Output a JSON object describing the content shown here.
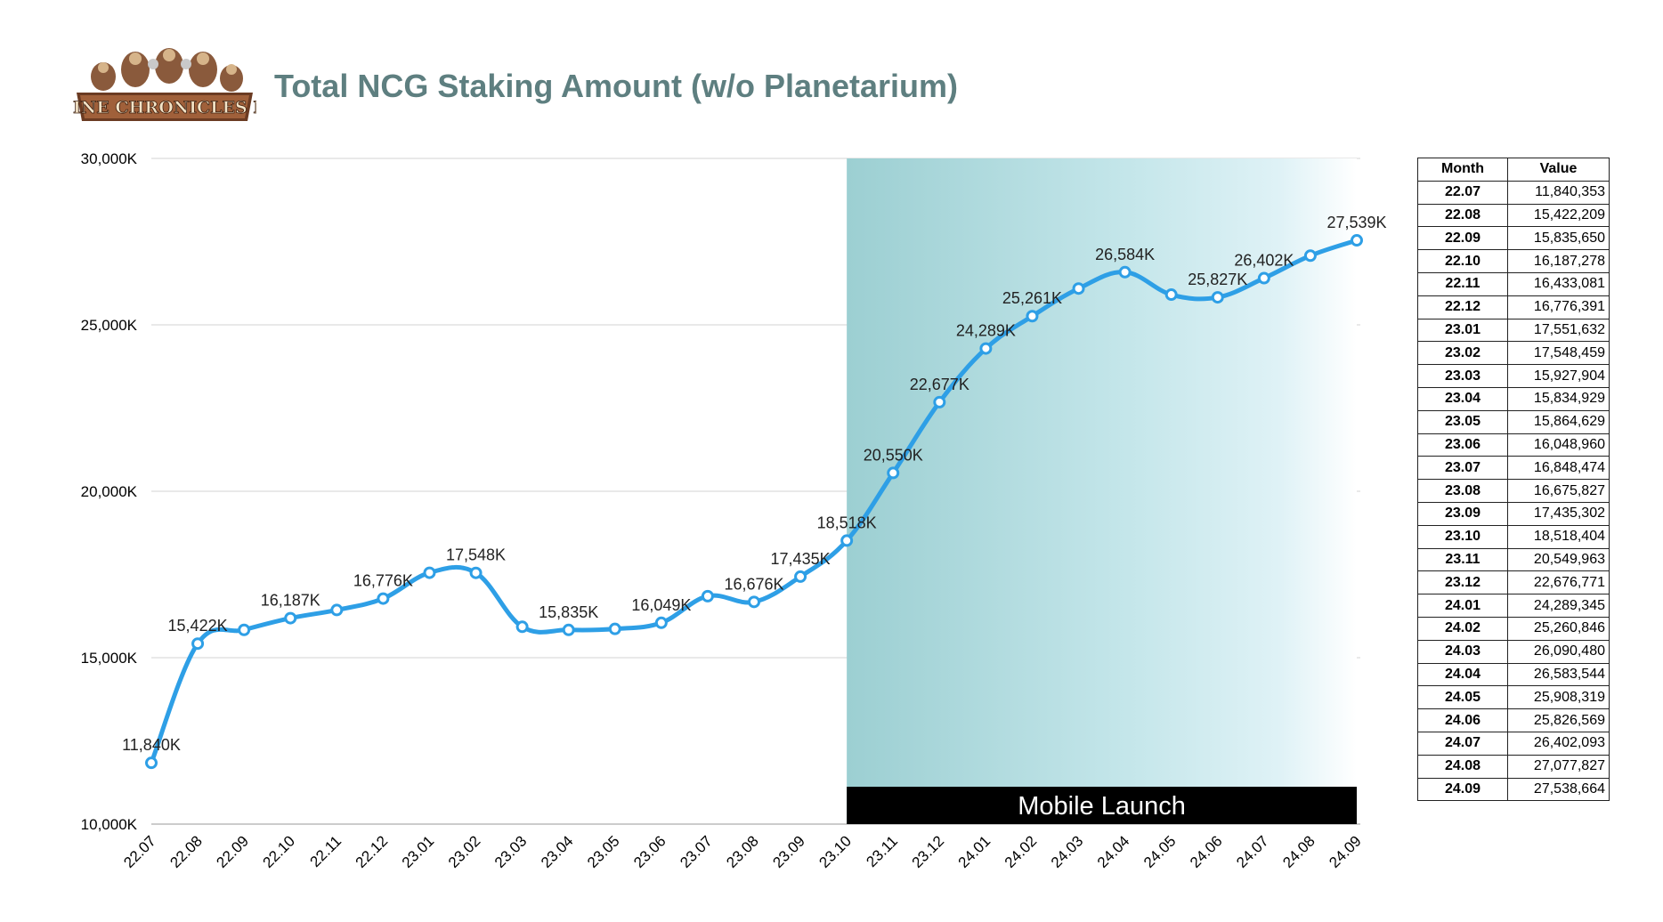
{
  "logo": {
    "text": "NINE CHRONICLES M",
    "icon": "nine-chronicles-m-logo"
  },
  "chart_data": {
    "type": "line",
    "title": "Total NCG Staking Amount (w/o Planetarium)",
    "xlabel": "",
    "ylabel": "",
    "ylim": [
      10000,
      30000
    ],
    "y_ticks": [
      "10,000K",
      "15,000K",
      "20,000K",
      "25,000K",
      "30,000K"
    ],
    "grid": true,
    "categories": [
      "22.07",
      "22.08",
      "22.09",
      "22.10",
      "22.11",
      "22.12",
      "23.01",
      "23.02",
      "23.03",
      "23.04",
      "23.05",
      "23.06",
      "23.07",
      "23.08",
      "23.09",
      "23.10",
      "23.11",
      "23.12",
      "24.01",
      "24.02",
      "24.03",
      "24.04",
      "24.05",
      "24.06",
      "24.07",
      "24.08",
      "24.09"
    ],
    "series": [
      {
        "color": "#2e9fe6",
        "values": [
          11840.353,
          15422.209,
          15835.65,
          16187.278,
          16433.081,
          16776.391,
          17551.632,
          17548.459,
          15927.904,
          15834.929,
          15864.629,
          16048.96,
          16848.474,
          16675.827,
          17435.302,
          18518.404,
          20549.963,
          22676.771,
          24289.345,
          25260.846,
          26090.48,
          26583.544,
          25908.319,
          25826.569,
          26402.093,
          27077.827,
          27538.664
        ]
      }
    ],
    "data_labels": [
      {
        "index": 0,
        "text": "11,840K"
      },
      {
        "index": 1,
        "text": "15,422K"
      },
      {
        "index": 3,
        "text": "16,187K"
      },
      {
        "index": 5,
        "text": "16,776K"
      },
      {
        "index": 7,
        "text": "17,548K"
      },
      {
        "index": 9,
        "text": "15,835K"
      },
      {
        "index": 11,
        "text": "16,049K"
      },
      {
        "index": 13,
        "text": "16,676K"
      },
      {
        "index": 14,
        "text": "17,435K"
      },
      {
        "index": 15,
        "text": "18,518K"
      },
      {
        "index": 16,
        "text": "20,550K"
      },
      {
        "index": 17,
        "text": "22,677K"
      },
      {
        "index": 18,
        "text": "24,289K"
      },
      {
        "index": 19,
        "text": "25,261K"
      },
      {
        "index": 21,
        "text": "26,584K"
      },
      {
        "index": 23,
        "text": "25,827K"
      },
      {
        "index": 24,
        "text": "26,402K"
      },
      {
        "index": 26,
        "text": "27,539K"
      }
    ],
    "annotation": {
      "label": "Mobile Launch",
      "start_category": "23.10",
      "end_category": "24.09",
      "color": "#8ecdd3"
    }
  },
  "table": {
    "headers": [
      "Month",
      "Value"
    ],
    "rows": [
      [
        "22.07",
        "11,840,353"
      ],
      [
        "22.08",
        "15,422,209"
      ],
      [
        "22.09",
        "15,835,650"
      ],
      [
        "22.10",
        "16,187,278"
      ],
      [
        "22.11",
        "16,433,081"
      ],
      [
        "22.12",
        "16,776,391"
      ],
      [
        "23.01",
        "17,551,632"
      ],
      [
        "23.02",
        "17,548,459"
      ],
      [
        "23.03",
        "15,927,904"
      ],
      [
        "23.04",
        "15,834,929"
      ],
      [
        "23.05",
        "15,864,629"
      ],
      [
        "23.06",
        "16,048,960"
      ],
      [
        "23.07",
        "16,848,474"
      ],
      [
        "23.08",
        "16,675,827"
      ],
      [
        "23.09",
        "17,435,302"
      ],
      [
        "23.10",
        "18,518,404"
      ],
      [
        "23.11",
        "20,549,963"
      ],
      [
        "23.12",
        "22,676,771"
      ],
      [
        "24.01",
        "24,289,345"
      ],
      [
        "24.02",
        "25,260,846"
      ],
      [
        "24.03",
        "26,090,480"
      ],
      [
        "24.04",
        "26,583,544"
      ],
      [
        "24.05",
        "25,908,319"
      ],
      [
        "24.06",
        "25,826,569"
      ],
      [
        "24.07",
        "26,402,093"
      ],
      [
        "24.08",
        "27,077,827"
      ],
      [
        "24.09",
        "27,538,664"
      ]
    ]
  }
}
